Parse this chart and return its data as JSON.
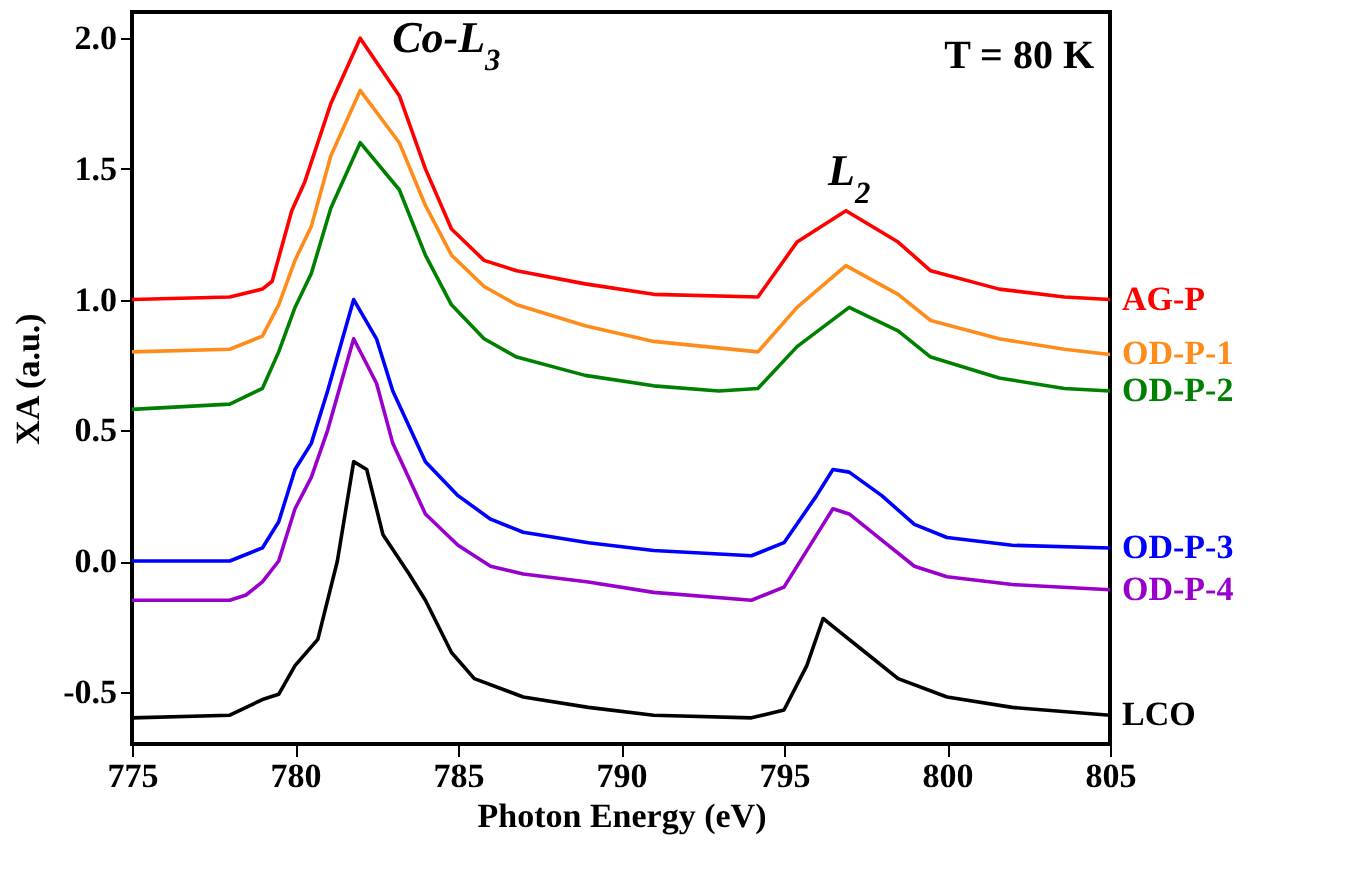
{
  "chart_data": {
    "type": "line",
    "xlabel": "Photon Energy (eV)",
    "ylabel": "XA (a.u.)",
    "xlim": [
      775,
      805
    ],
    "ylim": [
      -0.7,
      2.1
    ],
    "xticks": [
      775,
      780,
      785,
      790,
      795,
      800,
      805
    ],
    "yticks": [
      -0.5,
      {
        "value": 0,
        "label": "0.0"
      },
      0.5,
      {
        "value": 1,
        "label": "1.0"
      },
      1.5,
      {
        "value": 2,
        "label": "2.0"
      }
    ],
    "legend": false,
    "annotations": [
      {
        "text": "Co-L$_{3}$",
        "x": 782,
        "y": 2.0
      },
      {
        "text": "L$_{2}$",
        "x": 797,
        "y": 1.34
      },
      "T = 80 K"
    ],
    "series": [
      {
        "name": "AG-P",
        "color": "#ff0000",
        "x": [
          775,
          778,
          779,
          779.3,
          779.9,
          780.3,
          781.1,
          782,
          783.2,
          784,
          784.8,
          785.8,
          786.8,
          788.9,
          791,
          794.2,
          795.4,
          796.9,
          798.5,
          799.5,
          801.6,
          803.6,
          805
        ],
        "values": [
          1.0,
          1.01,
          1.04,
          1.07,
          1.34,
          1.45,
          1.75,
          2.0,
          1.78,
          1.5,
          1.27,
          1.15,
          1.11,
          1.06,
          1.02,
          1.01,
          1.22,
          1.34,
          1.22,
          1.11,
          1.04,
          1.01,
          1.0
        ]
      },
      {
        "name": "OD-P-1",
        "color": "#ff8c1a",
        "x": [
          775,
          778,
          779,
          779.5,
          780,
          780.5,
          781.1,
          782,
          783.2,
          784,
          784.8,
          785.8,
          786.8,
          788.9,
          791,
          794.2,
          795.4,
          796.9,
          798.5,
          799.5,
          801.6,
          803.6,
          805
        ],
        "values": [
          0.8,
          0.81,
          0.86,
          0.98,
          1.15,
          1.28,
          1.55,
          1.8,
          1.6,
          1.36,
          1.17,
          1.05,
          0.98,
          0.9,
          0.84,
          0.8,
          0.97,
          1.13,
          1.02,
          0.92,
          0.85,
          0.81,
          0.79
        ]
      },
      {
        "name": "OD-P-2",
        "color": "#008000",
        "x": [
          775,
          778,
          779,
          779.5,
          780,
          780.5,
          781.1,
          782,
          783.2,
          784,
          784.8,
          785.8,
          786.8,
          788.9,
          791,
          793,
          794.2,
          795.4,
          797,
          798.5,
          799.5,
          801.6,
          803.6,
          805
        ],
        "values": [
          0.58,
          0.6,
          0.66,
          0.8,
          0.97,
          1.1,
          1.35,
          1.6,
          1.42,
          1.17,
          0.98,
          0.85,
          0.78,
          0.71,
          0.67,
          0.65,
          0.66,
          0.82,
          0.97,
          0.88,
          0.78,
          0.7,
          0.66,
          0.65
        ]
      },
      {
        "name": "OD-P-3",
        "color": "#0000ff",
        "x": [
          775,
          778,
          779,
          779.5,
          780,
          780.5,
          781,
          781.8,
          782.5,
          783,
          784,
          785,
          786,
          787,
          789,
          791,
          794,
          795,
          796,
          796.5,
          797,
          798,
          799,
          800,
          802,
          805
        ],
        "values": [
          0.0,
          0.0,
          0.05,
          0.15,
          0.35,
          0.45,
          0.65,
          1.0,
          0.85,
          0.65,
          0.38,
          0.25,
          0.16,
          0.11,
          0.07,
          0.04,
          0.02,
          0.07,
          0.25,
          0.35,
          0.34,
          0.25,
          0.14,
          0.09,
          0.06,
          0.05
        ]
      },
      {
        "name": "OD-P-4",
        "color": "#9900cc",
        "x": [
          775,
          778,
          778.5,
          779,
          779.5,
          780,
          780.5,
          781,
          781.8,
          782.5,
          783,
          784,
          785,
          786,
          787,
          789,
          791,
          794,
          795,
          796,
          796.5,
          797,
          798,
          799,
          800,
          802,
          805
        ],
        "values": [
          -0.15,
          -0.15,
          -0.13,
          -0.08,
          0.0,
          0.2,
          0.32,
          0.5,
          0.85,
          0.68,
          0.45,
          0.18,
          0.06,
          -0.02,
          -0.05,
          -0.08,
          -0.12,
          -0.15,
          -0.1,
          0.1,
          0.2,
          0.18,
          0.08,
          -0.02,
          -0.06,
          -0.09,
          -0.11
        ]
      },
      {
        "name": "LCO",
        "color": "#000000",
        "x": [
          775,
          778,
          779,
          779.5,
          780,
          780.7,
          781.3,
          781.8,
          782.2,
          782.7,
          783.5,
          784,
          784.8,
          785.5,
          787,
          789,
          791,
          794,
          795,
          795.7,
          796.2,
          796.7,
          797.5,
          798.5,
          800,
          802,
          805
        ],
        "values": [
          -0.6,
          -0.59,
          -0.53,
          -0.51,
          -0.4,
          -0.3,
          0.0,
          0.38,
          0.35,
          0.1,
          -0.05,
          -0.15,
          -0.35,
          -0.45,
          -0.52,
          -0.56,
          -0.59,
          -0.6,
          -0.57,
          -0.4,
          -0.22,
          -0.27,
          -0.35,
          -0.45,
          -0.52,
          -0.56,
          -0.59
        ]
      }
    ]
  }
}
